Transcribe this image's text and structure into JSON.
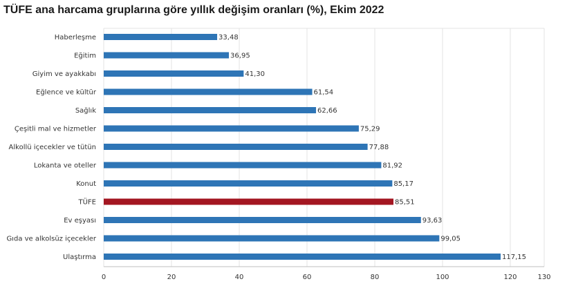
{
  "chart_data": {
    "type": "bar",
    "orientation": "horizontal",
    "title": "TÜFE ana harcama gruplarına göre yıllık değişim oranları (%), Ekim 2022",
    "categories": [
      "Haberleşme",
      "Eğitim",
      "Giyim ve ayakkabı",
      "Eğlence ve kültür",
      "Sağlık",
      "Çeşitli mal ve hizmetler",
      "Alkollü içecekler ve tütün",
      "Lokanta ve oteller",
      "Konut",
      "TÜFE",
      "Ev eşyası",
      "Gıda ve alkolsüz içecekler",
      "Ulaştırma"
    ],
    "values": [
      33.48,
      36.95,
      41.3,
      61.54,
      62.66,
      75.29,
      77.88,
      81.92,
      85.17,
      85.51,
      93.63,
      99.05,
      117.15
    ],
    "value_labels": [
      "33,48",
      "36,95",
      "41,30",
      "61,54",
      "62,66",
      "75,29",
      "77,88",
      "81,92",
      "85,17",
      "85,51",
      "93,63",
      "99,05",
      "117,15"
    ],
    "xlim": [
      0,
      130
    ],
    "xticks": [
      0,
      20,
      40,
      60,
      80,
      100,
      120,
      130
    ],
    "grid": true,
    "colors": {
      "bar": "#2e75b6",
      "highlight": "#a31621",
      "highlight_category": "TÜFE",
      "grid": "#e3e3e3"
    }
  }
}
